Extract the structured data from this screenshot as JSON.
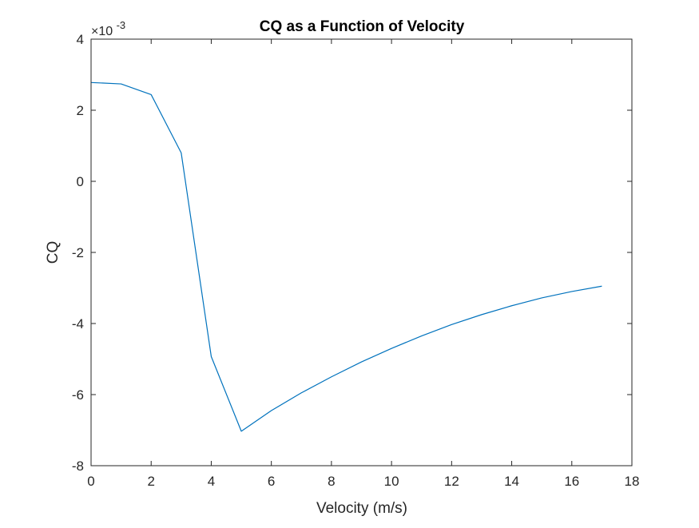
{
  "chart_data": {
    "type": "line",
    "title": "CQ as a Function of Velocity",
    "xlabel": "Velocity (m/s)",
    "ylabel": "CQ",
    "exponent_label": {
      "base": "×10",
      "power": "-3"
    },
    "xlim": [
      0,
      18
    ],
    "ylim": [
      -8,
      4
    ],
    "xticks": [
      0,
      2,
      4,
      6,
      8,
      10,
      12,
      14,
      16,
      18
    ],
    "yticks": [
      -8,
      -6,
      -4,
      -2,
      0,
      2,
      4
    ],
    "grid": false,
    "legend": "none",
    "series": [
      {
        "color": "#0072BD",
        "x": [
          0,
          1,
          2,
          3,
          4,
          5,
          6,
          7,
          8,
          9,
          10,
          11,
          12,
          13,
          14,
          15,
          16,
          17
        ],
        "y": [
          2.78,
          2.74,
          2.44,
          0.8,
          -4.93,
          -7.03,
          -6.45,
          -5.95,
          -5.5,
          -5.08,
          -4.7,
          -4.35,
          -4.03,
          -3.75,
          -3.5,
          -3.28,
          -3.1,
          -2.95
        ]
      }
    ]
  }
}
